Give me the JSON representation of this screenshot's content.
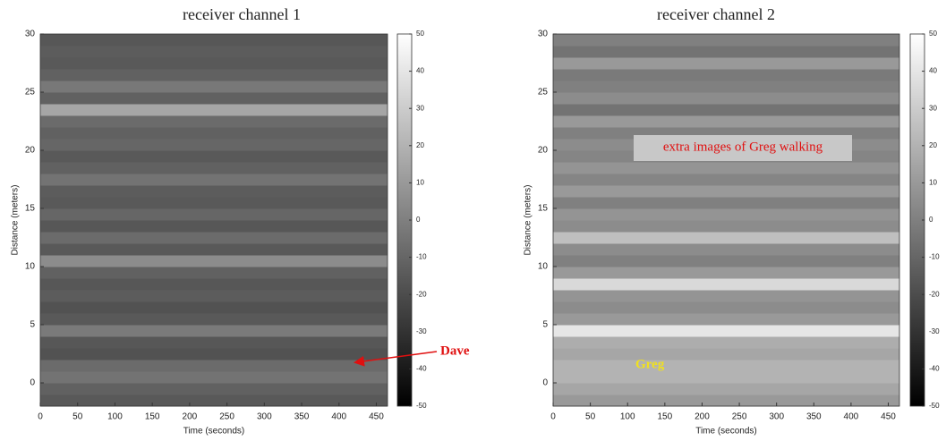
{
  "chart_data": [
    {
      "type": "heatmap",
      "title": "receiver channel 1",
      "xlabel": "Time  (seconds)",
      "ylabel": "Distance  (meters)",
      "xlim": [
        0,
        465
      ],
      "xticks": [
        0,
        50,
        100,
        150,
        200,
        250,
        300,
        350,
        400,
        450
      ],
      "ylim": [
        -2,
        30
      ],
      "yticks": [
        0,
        5,
        10,
        15,
        20,
        25,
        30
      ],
      "y_edges": [
        -2,
        -1,
        0,
        1,
        2,
        3,
        4,
        5,
        6,
        7,
        8,
        9,
        10,
        11,
        12,
        13,
        14,
        15,
        16,
        17,
        18,
        19,
        20,
        21,
        22,
        23,
        24,
        25,
        26,
        27,
        28,
        29,
        30
      ],
      "values": [
        -15,
        -12,
        -5,
        -8,
        -18,
        -16,
        -2,
        -15,
        -18,
        -14,
        -16,
        -12,
        5,
        -15,
        -8,
        -16,
        -10,
        -15,
        -14,
        -5,
        -12,
        -15,
        -10,
        -12,
        -8,
        15,
        -12,
        -3,
        -12,
        -15,
        -14,
        -16
      ],
      "colormap": "gray",
      "clim": [
        -50,
        50
      ],
      "cticks": [
        50,
        40,
        30,
        20,
        10,
        0,
        -10,
        -20,
        -30,
        -40,
        -50
      ],
      "annotations": [
        {
          "text": "Dave",
          "color": "#e01010"
        }
      ]
    },
    {
      "type": "heatmap",
      "title": "receiver channel 2",
      "xlabel": "Time  (seconds)",
      "ylabel": "Distance  (meters)",
      "xlim": [
        0,
        465
      ],
      "xticks": [
        0,
        50,
        100,
        150,
        200,
        250,
        300,
        350,
        400,
        450
      ],
      "ylim": [
        -2,
        30
      ],
      "yticks": [
        0,
        5,
        10,
        15,
        20,
        25,
        30
      ],
      "y_edges": [
        -2,
        -1,
        0,
        1,
        2,
        3,
        4,
        5,
        6,
        7,
        8,
        9,
        10,
        11,
        12,
        13,
        14,
        15,
        16,
        17,
        18,
        19,
        20,
        21,
        22,
        23,
        24,
        25,
        26,
        27,
        28,
        29,
        30
      ],
      "values": [
        10,
        15,
        20,
        20,
        15,
        18,
        40,
        10,
        5,
        8,
        35,
        10,
        0,
        5,
        25,
        5,
        8,
        0,
        10,
        2,
        8,
        2,
        5,
        0,
        10,
        -5,
        5,
        0,
        -2,
        10,
        -5,
        0
      ],
      "colormap": "gray",
      "clim": [
        -50,
        50
      ],
      "cticks": [
        50,
        40,
        30,
        20,
        10,
        0,
        -10,
        -20,
        -30,
        -40,
        -50
      ],
      "annotations": [
        {
          "text": "extra images of Greg walking",
          "color": "#e01010"
        },
        {
          "text": "Greg",
          "color": "#f0e020"
        }
      ]
    }
  ]
}
